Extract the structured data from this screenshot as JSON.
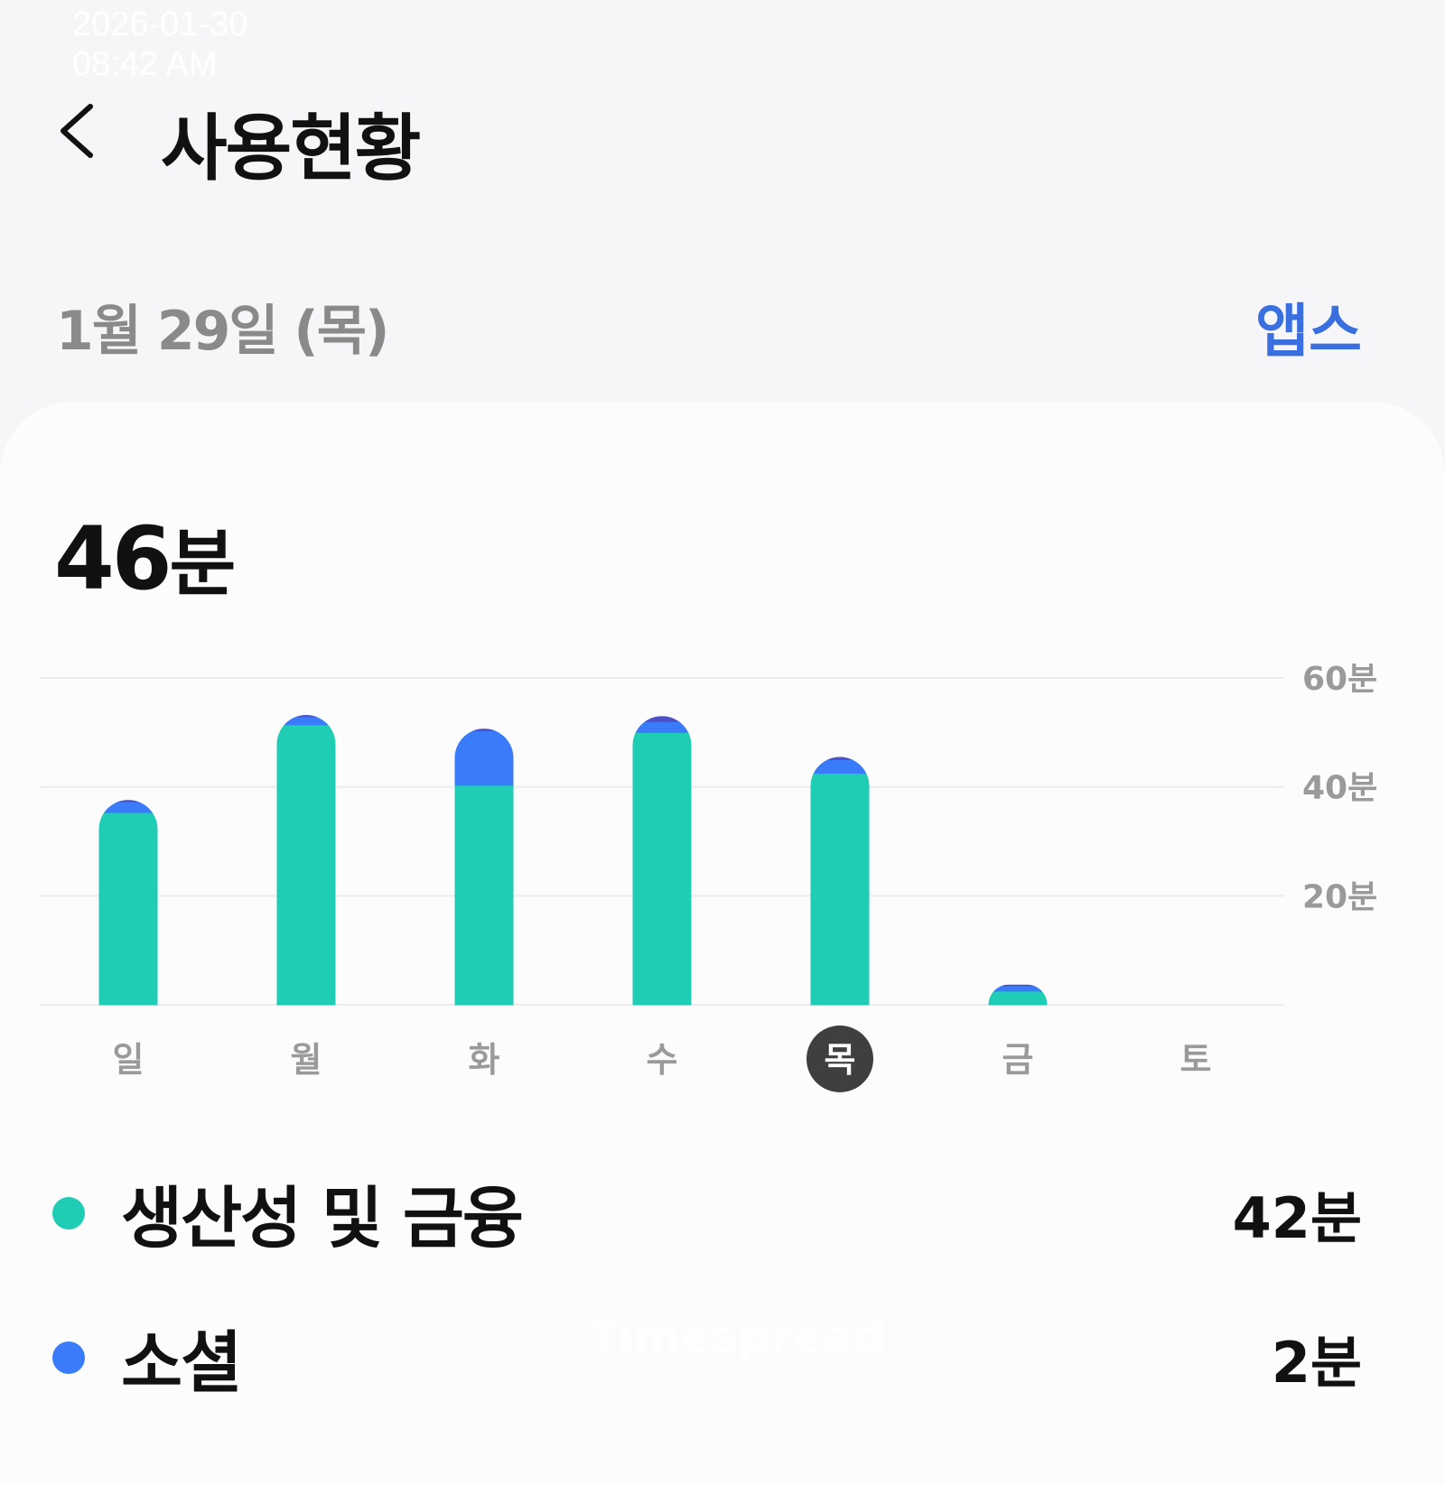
{
  "overlay": {
    "date": "2026-01-30",
    "time": "08:42 AM"
  },
  "header": {
    "title": "사용현황",
    "back_icon": "chevron-left-icon"
  },
  "subheader": {
    "date": "1월 29일 (목)",
    "apps_link": "앱스"
  },
  "summary": {
    "value": "46",
    "unit": "분"
  },
  "colors": {
    "productivity": "#1fcdb4",
    "social": "#3a7bfa",
    "other": "#4b4fc8",
    "accent": "#3a6fe0"
  },
  "chart_data": {
    "type": "bar",
    "stacked": true,
    "categories": [
      "일",
      "월",
      "화",
      "수",
      "목",
      "금",
      "토"
    ],
    "selected": "목",
    "series": [
      {
        "name": "생산성 및 금융",
        "values": [
          35.3,
          51.4,
          40.3,
          50,
          42.5,
          2.5,
          0
        ]
      },
      {
        "name": "소셜",
        "values": [
          2,
          1.5,
          10,
          2,
          2.5,
          1,
          0
        ]
      },
      {
        "values": [
          0.3,
          0.3,
          0.4,
          1,
          0.5,
          0.2,
          0
        ]
      }
    ],
    "ylim": [
      0,
      60
    ],
    "yticks": [
      {
        "v": 20,
        "label": "20분"
      },
      {
        "v": 40,
        "label": "40분"
      },
      {
        "v": 60,
        "label": "60분"
      }
    ],
    "grid": true
  },
  "legend": [
    {
      "name": "생산성 및 금융",
      "value": "42분"
    },
    {
      "name": "소셜",
      "value": "2분"
    }
  ],
  "watermark": "Timespread"
}
